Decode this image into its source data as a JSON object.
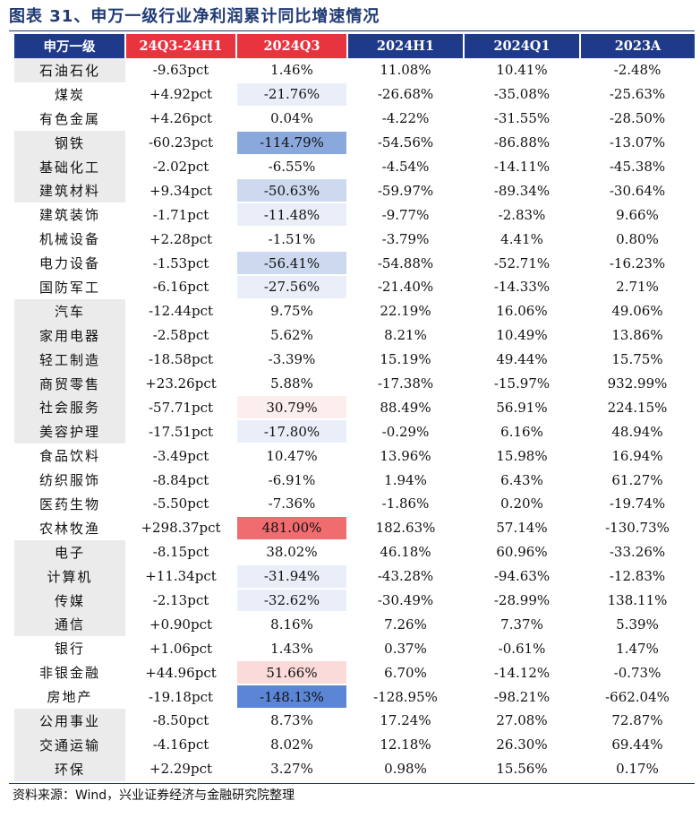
{
  "title": "图表 31、申万一级行业净利润累计同比增速情况",
  "source": "资料来源：Wind，兴业证券经济与金融研究院整理",
  "colors": {
    "header_navy": "#1f3a8a",
    "header_red": "#e8343f",
    "shade_gray": "#ebebeb",
    "blue_scale": [
      "#e9eef8",
      "#ccd9ee",
      "#8ba8dc",
      "#5b86d6"
    ],
    "red_scale": [
      "#fdeeee",
      "#fbdada",
      "#f06c6f"
    ]
  },
  "columns": [
    "申万一级",
    "24Q3-24H1",
    "2024Q3",
    "2024H1",
    "2024Q1",
    "2023A"
  ],
  "rows": [
    {
      "name": "石油石化",
      "diff": "-9.63pct",
      "q3": "1.46%",
      "h1": "11.08%",
      "q1": "10.41%",
      "y2023": "-2.48%",
      "shade": true,
      "hl": "none"
    },
    {
      "name": "煤炭",
      "diff": "+4.92pct",
      "q3": "-21.76%",
      "h1": "-26.68%",
      "q1": "-35.08%",
      "y2023": "-25.63%",
      "shade": false,
      "hl": "b1"
    },
    {
      "name": "有色金属",
      "diff": "+4.26pct",
      "q3": "0.04%",
      "h1": "-4.22%",
      "q1": "-31.55%",
      "y2023": "-28.50%",
      "shade": false,
      "hl": "none"
    },
    {
      "name": "钢铁",
      "diff": "-60.23pct",
      "q3": "-114.79%",
      "h1": "-54.56%",
      "q1": "-86.88%",
      "y2023": "-13.07%",
      "shade": true,
      "hl": "b3"
    },
    {
      "name": "基础化工",
      "diff": "-2.02pct",
      "q3": "-6.55%",
      "h1": "-4.54%",
      "q1": "-14.11%",
      "y2023": "-45.38%",
      "shade": true,
      "hl": "none"
    },
    {
      "name": "建筑材料",
      "diff": "+9.34pct",
      "q3": "-50.63%",
      "h1": "-59.97%",
      "q1": "-89.34%",
      "y2023": "-30.64%",
      "shade": true,
      "hl": "b2"
    },
    {
      "name": "建筑装饰",
      "diff": "-1.71pct",
      "q3": "-11.48%",
      "h1": "-9.77%",
      "q1": "-2.83%",
      "y2023": "9.66%",
      "shade": false,
      "hl": "b1"
    },
    {
      "name": "机械设备",
      "diff": "+2.28pct",
      "q3": "-1.51%",
      "h1": "-3.79%",
      "q1": "4.41%",
      "y2023": "0.80%",
      "shade": false,
      "hl": "none"
    },
    {
      "name": "电力设备",
      "diff": "-1.53pct",
      "q3": "-56.41%",
      "h1": "-54.88%",
      "q1": "-52.71%",
      "y2023": "-16.23%",
      "shade": false,
      "hl": "b2"
    },
    {
      "name": "国防军工",
      "diff": "-6.16pct",
      "q3": "-27.56%",
      "h1": "-21.40%",
      "q1": "-14.33%",
      "y2023": "2.71%",
      "shade": false,
      "hl": "b1"
    },
    {
      "name": "汽车",
      "diff": "-12.44pct",
      "q3": "9.75%",
      "h1": "22.19%",
      "q1": "16.06%",
      "y2023": "49.06%",
      "shade": true,
      "hl": "none"
    },
    {
      "name": "家用电器",
      "diff": "-2.58pct",
      "q3": "5.62%",
      "h1": "8.21%",
      "q1": "10.49%",
      "y2023": "13.86%",
      "shade": true,
      "hl": "none"
    },
    {
      "name": "轻工制造",
      "diff": "-18.58pct",
      "q3": "-3.39%",
      "h1": "15.19%",
      "q1": "49.44%",
      "y2023": "15.75%",
      "shade": true,
      "hl": "none"
    },
    {
      "name": "商贸零售",
      "diff": "+23.26pct",
      "q3": "5.88%",
      "h1": "-17.38%",
      "q1": "-15.97%",
      "y2023": "932.99%",
      "shade": true,
      "hl": "none"
    },
    {
      "name": "社会服务",
      "diff": "-57.71pct",
      "q3": "30.79%",
      "h1": "88.49%",
      "q1": "56.91%",
      "y2023": "224.15%",
      "shade": true,
      "hl": "r1"
    },
    {
      "name": "美容护理",
      "diff": "-17.51pct",
      "q3": "-17.80%",
      "h1": "-0.29%",
      "q1": "6.16%",
      "y2023": "48.94%",
      "shade": true,
      "hl": "b1"
    },
    {
      "name": "食品饮料",
      "diff": "-3.49pct",
      "q3": "10.47%",
      "h1": "13.96%",
      "q1": "15.98%",
      "y2023": "16.94%",
      "shade": false,
      "hl": "none"
    },
    {
      "name": "纺织服饰",
      "diff": "-8.84pct",
      "q3": "-6.91%",
      "h1": "1.94%",
      "q1": "6.43%",
      "y2023": "61.27%",
      "shade": false,
      "hl": "none"
    },
    {
      "name": "医药生物",
      "diff": "-5.50pct",
      "q3": "-7.36%",
      "h1": "-1.86%",
      "q1": "0.20%",
      "y2023": "-19.74%",
      "shade": false,
      "hl": "none"
    },
    {
      "name": "农林牧渔",
      "diff": "+298.37pct",
      "q3": "481.00%",
      "h1": "182.63%",
      "q1": "57.14%",
      "y2023": "-130.73%",
      "shade": false,
      "hl": "r3"
    },
    {
      "name": "电子",
      "diff": "-8.15pct",
      "q3": "38.02%",
      "h1": "46.18%",
      "q1": "60.96%",
      "y2023": "-33.26%",
      "shade": true,
      "hl": "none"
    },
    {
      "name": "计算机",
      "diff": "+11.34pct",
      "q3": "-31.94%",
      "h1": "-43.28%",
      "q1": "-94.63%",
      "y2023": "-12.83%",
      "shade": true,
      "hl": "b1"
    },
    {
      "name": "传媒",
      "diff": "-2.13pct",
      "q3": "-32.62%",
      "h1": "-30.49%",
      "q1": "-28.99%",
      "y2023": "138.11%",
      "shade": true,
      "hl": "b1"
    },
    {
      "name": "通信",
      "diff": "+0.90pct",
      "q3": "8.16%",
      "h1": "7.26%",
      "q1": "7.37%",
      "y2023": "5.39%",
      "shade": true,
      "hl": "none"
    },
    {
      "name": "银行",
      "diff": "+1.06pct",
      "q3": "1.43%",
      "h1": "0.37%",
      "q1": "-0.61%",
      "y2023": "1.47%",
      "shade": false,
      "hl": "none"
    },
    {
      "name": "非银金融",
      "diff": "+44.96pct",
      "q3": "51.66%",
      "h1": "6.70%",
      "q1": "-14.12%",
      "y2023": "-0.73%",
      "shade": false,
      "hl": "r2"
    },
    {
      "name": "房地产",
      "diff": "-19.18pct",
      "q3": "-148.13%",
      "h1": "-128.95%",
      "q1": "-98.21%",
      "y2023": "-662.04%",
      "shade": false,
      "hl": "b4"
    },
    {
      "name": "公用事业",
      "diff": "-8.50pct",
      "q3": "8.73%",
      "h1": "17.24%",
      "q1": "27.08%",
      "y2023": "72.87%",
      "shade": true,
      "hl": "none"
    },
    {
      "name": "交通运输",
      "diff": "-4.16pct",
      "q3": "8.02%",
      "h1": "12.18%",
      "q1": "26.30%",
      "y2023": "69.44%",
      "shade": true,
      "hl": "none"
    },
    {
      "name": "环保",
      "diff": "+2.29pct",
      "q3": "3.27%",
      "h1": "0.98%",
      "q1": "15.56%",
      "y2023": "0.17%",
      "shade": true,
      "hl": "none"
    }
  ]
}
